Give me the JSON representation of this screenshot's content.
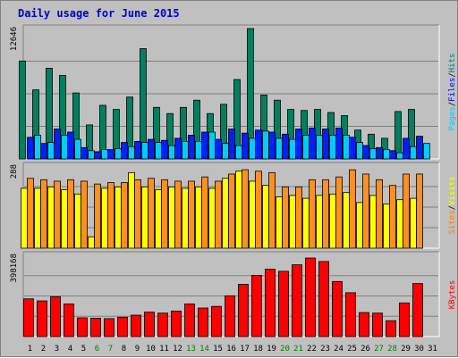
{
  "chart_data": [
    {
      "type": "bar",
      "title": "Daily usage for June 2015",
      "ymax_label": "12646",
      "ylabel_parts": [
        {
          "text": "Pages",
          "color": "#00ccff"
        },
        {
          "text": "/",
          "color": "#000000"
        },
        {
          "text": "Files",
          "color": "#0000ff"
        },
        {
          "text": "/",
          "color": "#000000"
        },
        {
          "text": "Hits",
          "color": "#008080"
        }
      ],
      "ymax": 12646,
      "series": [
        {
          "name": "Hits",
          "color": "#008060",
          "values": [
            9500,
            6700,
            8800,
            8100,
            6400,
            3300,
            5200,
            4800,
            6000,
            10700,
            5000,
            4400,
            5000,
            5700,
            4400,
            5300,
            7700,
            12646,
            6200,
            5700,
            4800,
            4700,
            4800,
            4500,
            4200,
            2800,
            2400,
            2000,
            4600,
            4800
          ]
        },
        {
          "name": "Files",
          "color": "#0020ff",
          "values": [
            2100,
            1500,
            2900,
            2600,
            1100,
            700,
            900,
            1600,
            1700,
            1900,
            1800,
            2000,
            2300,
            2600,
            1900,
            2900,
            2500,
            2800,
            2600,
            2400,
            2900,
            3000,
            2900,
            3000,
            2100,
            1300,
            1100,
            800,
            2000,
            2200
          ]
        },
        {
          "name": "Pages",
          "color": "#00ccff",
          "values": [
            2300,
            1600,
            2300,
            1900,
            800,
            900,
            1000,
            1200,
            1600,
            1600,
            1300,
            1700,
            1700,
            2600,
            1500,
            1300,
            2000,
            2700,
            2000,
            1900,
            2300,
            2300,
            2300,
            2300,
            1600,
            1000,
            900,
            600,
            1200,
            1500
          ]
        }
      ]
    },
    {
      "type": "bar",
      "ymax_label": "288",
      "ylabel_parts": [
        {
          "text": "Sites",
          "color": "#ff8000"
        },
        {
          "text": "/",
          "color": "#000000"
        },
        {
          "text": "Visits",
          "color": "#ffff00"
        }
      ],
      "ymax": 288,
      "series": [
        {
          "name": "Visits",
          "color": "#ffff00",
          "values": [
            210,
            210,
            215,
            205,
            190,
            40,
            210,
            215,
            265,
            215,
            205,
            215,
            210,
            215,
            210,
            245,
            270,
            235,
            220,
            180,
            185,
            175,
            185,
            190,
            195,
            160,
            185,
            155,
            170,
            175
          ]
        },
        {
          "name": "Sites",
          "color": "#ff9020",
          "values": [
            245,
            240,
            235,
            240,
            235,
            225,
            230,
            230,
            240,
            245,
            240,
            235,
            235,
            250,
            235,
            260,
            275,
            270,
            265,
            215,
            215,
            240,
            240,
            250,
            275,
            260,
            240,
            220,
            260,
            260
          ]
        }
      ]
    },
    {
      "type": "bar",
      "ymax_label": "398168",
      "ylabel_parts": [
        {
          "text": "KBytes",
          "color": "#ff0000"
        }
      ],
      "ymax": 398168,
      "series": [
        {
          "name": "KBytes",
          "color": "#ff0000",
          "values": [
            185000,
            175000,
            195000,
            160000,
            92000,
            90000,
            88000,
            95000,
            105000,
            120000,
            115000,
            125000,
            160000,
            140000,
            148000,
            200000,
            256000,
            300000,
            330000,
            320000,
            352000,
            385000,
            368000,
            270000,
            215000,
            118000,
            115000,
            78000,
            165000,
            260000
          ]
        }
      ]
    }
  ],
  "x_labels": [
    {
      "day": "1",
      "color": "#000000"
    },
    {
      "day": "2",
      "color": "#000000"
    },
    {
      "day": "3",
      "color": "#000000"
    },
    {
      "day": "4",
      "color": "#000000"
    },
    {
      "day": "5",
      "color": "#000000"
    },
    {
      "day": "6",
      "color": "#008000"
    },
    {
      "day": "7",
      "color": "#008000"
    },
    {
      "day": "8",
      "color": "#000000"
    },
    {
      "day": "9",
      "color": "#000000"
    },
    {
      "day": "10",
      "color": "#000000"
    },
    {
      "day": "11",
      "color": "#000000"
    },
    {
      "day": "12",
      "color": "#000000"
    },
    {
      "day": "13",
      "color": "#008000"
    },
    {
      "day": "14",
      "color": "#008000"
    },
    {
      "day": "15",
      "color": "#000000"
    },
    {
      "day": "16",
      "color": "#000000"
    },
    {
      "day": "17",
      "color": "#000000"
    },
    {
      "day": "18",
      "color": "#000000"
    },
    {
      "day": "19",
      "color": "#000000"
    },
    {
      "day": "20",
      "color": "#008000"
    },
    {
      "day": "21",
      "color": "#008000"
    },
    {
      "day": "22",
      "color": "#000000"
    },
    {
      "day": "23",
      "color": "#000000"
    },
    {
      "day": "24",
      "color": "#000000"
    },
    {
      "day": "25",
      "color": "#000000"
    },
    {
      "day": "26",
      "color": "#000000"
    },
    {
      "day": "27",
      "color": "#008000"
    },
    {
      "day": "28",
      "color": "#008000"
    },
    {
      "day": "29",
      "color": "#000000"
    },
    {
      "day": "30",
      "color": "#000000"
    },
    {
      "day": "31",
      "color": "#000000"
    }
  ]
}
